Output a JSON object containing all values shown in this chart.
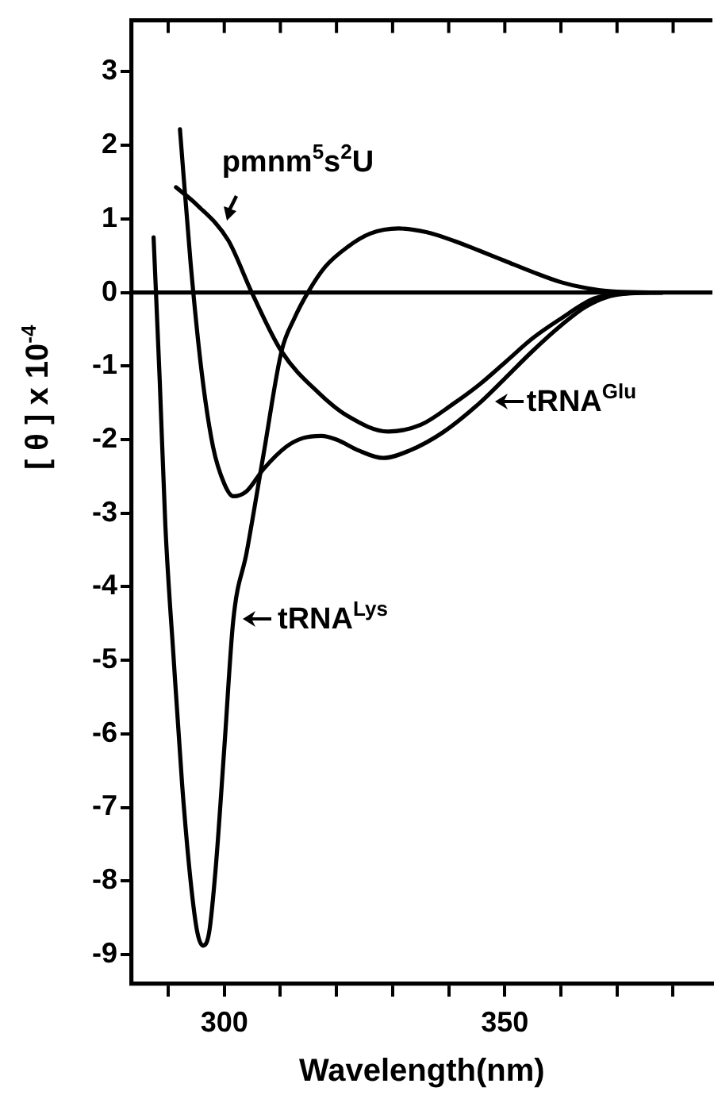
{
  "chart_data": {
    "type": "line",
    "xlabel": "Wavelength(nm)",
    "ylabel": "[ θ ]  x 10$^{-4}$",
    "xlim": [
      283.5,
      387
    ],
    "ylim": [
      -9.4,
      3.7
    ],
    "xticks": [
      {
        "value": 290,
        "label": null
      },
      300,
      {
        "value": 310,
        "label": null
      },
      {
        "value": 320,
        "label": null
      },
      {
        "value": 330,
        "label": null
      },
      {
        "value": 340,
        "label": null
      },
      350,
      {
        "value": 360,
        "label": null
      },
      {
        "value": 370,
        "label": null
      },
      {
        "value": 380,
        "label": null
      }
    ],
    "yticks": [
      -9,
      -8,
      -7,
      -6,
      -5,
      -4,
      -3,
      -2,
      -1,
      0,
      1,
      2,
      3
    ],
    "grid": false,
    "legend": "right",
    "marker": "none",
    "line_style": "solid",
    "ref_lines": [
      {
        "axis": "y",
        "value": 0,
        "color": "#000000"
      }
    ],
    "series": [
      {
        "name": "pmnm$^{5}$s$^{2}$U",
        "color": "#000000",
        "x": [
          291.4,
          295,
          300.7,
          304.9,
          310.2,
          316.9,
          322,
          329.2,
          335,
          340.7,
          345.5,
          350.2,
          355,
          359.7,
          366,
          372,
          378
        ],
        "values": [
          1.43,
          1.2,
          0.71,
          0.0,
          -0.8,
          -1.37,
          -1.68,
          -1.89,
          -1.8,
          -1.52,
          -1.25,
          -0.94,
          -0.62,
          -0.37,
          -0.08,
          -0.01,
          0
        ]
      },
      {
        "name": "tRNA$^{Glu}$",
        "color": "#000000",
        "x": [
          292.1,
          294,
          296,
          298,
          300,
          301.6,
          304,
          307,
          311,
          314,
          317.3,
          320,
          324,
          328.3,
          333,
          339,
          345.4,
          350,
          354.9,
          360,
          364.5,
          370,
          378
        ],
        "values": [
          2.22,
          0.4,
          -1.1,
          -2.1,
          -2.6,
          -2.77,
          -2.7,
          -2.4,
          -2.1,
          -1.98,
          -1.95,
          -2.0,
          -2.15,
          -2.25,
          -2.15,
          -1.9,
          -1.51,
          -1.17,
          -0.8,
          -0.45,
          -0.19,
          -0.03,
          0
        ]
      },
      {
        "name": "tRNA$^{Lys}$",
        "color": "#000000",
        "x": [
          287.4,
          288.5,
          289.5,
          291,
          292.5,
          294,
          295.2,
          296.2,
          297.3,
          298.5,
          300,
          301.6,
          304,
          307,
          310.2,
          312.5,
          314.9,
          318,
          322,
          326,
          331.1,
          336,
          341,
          345.4,
          350,
          354.9,
          360,
          364.5,
          370,
          378
        ],
        "values": [
          0.75,
          -1.2,
          -3.17,
          -5.0,
          -6.7,
          -8.0,
          -8.7,
          -8.88,
          -8.7,
          -7.8,
          -6.2,
          -4.46,
          -3.53,
          -2.2,
          -0.8,
          -0.35,
          0.0,
          0.35,
          0.62,
          0.8,
          0.87,
          0.82,
          0.7,
          0.57,
          0.43,
          0.28,
          0.14,
          0.06,
          0.01,
          0
        ]
      }
    ]
  }
}
